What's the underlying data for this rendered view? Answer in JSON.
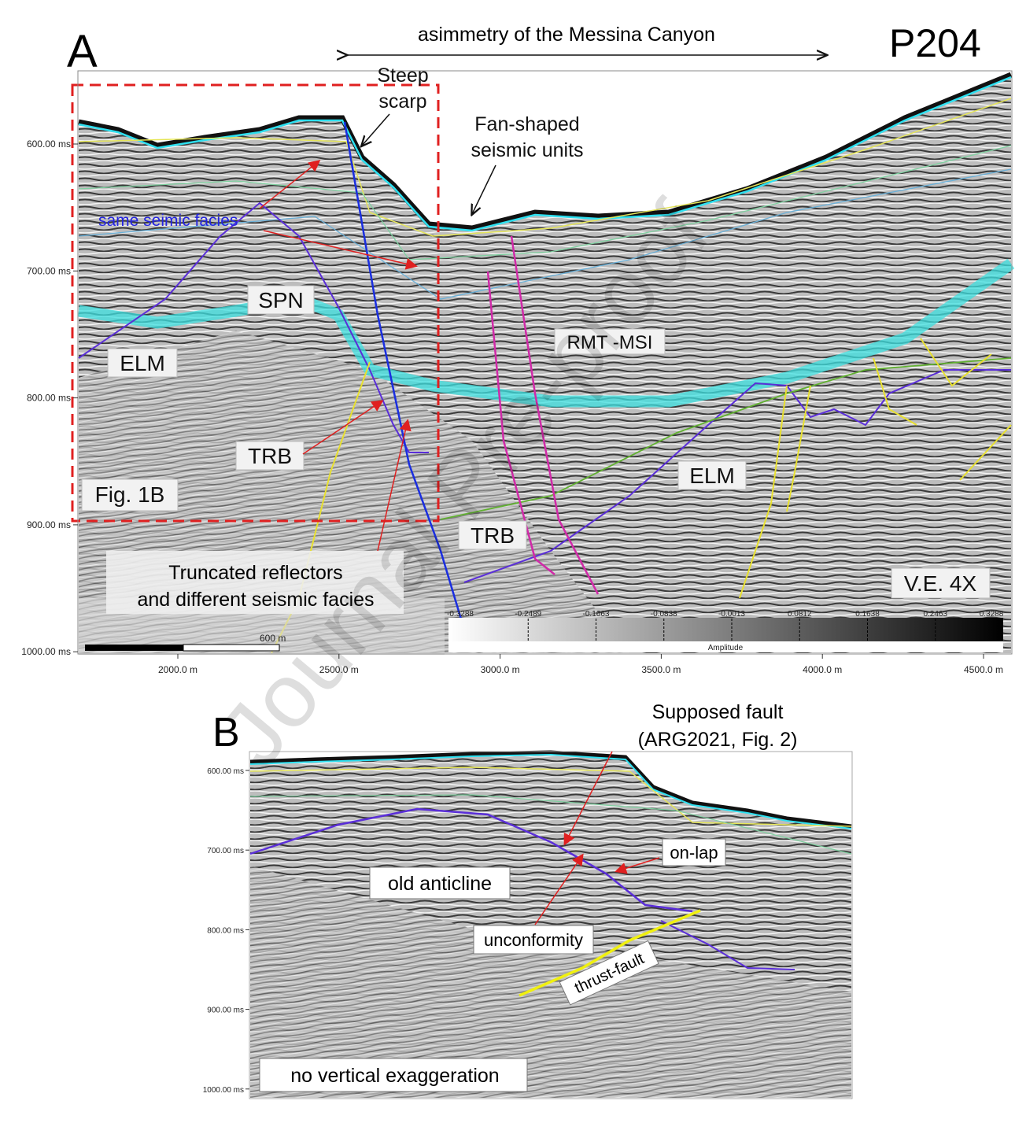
{
  "panel_a": {
    "label": "A",
    "profile": "P204",
    "arrow_caption": "asimmetry of the Messina Canyon",
    "annotations": {
      "steep": "Steep",
      "scarp": "scarp",
      "fan_1": "Fan-shaped",
      "fan_2": "seismic units",
      "same_facies": "same seimic facies",
      "spn": "SPN",
      "elm_left": "ELM",
      "trb_left": "TRB",
      "rmt": "RMT -MSI",
      "elm_right": "ELM",
      "trb_right": "TRB",
      "fig_ref": "Fig. 1B",
      "truncated_1": "Truncated reflectors",
      "truncated_2": "and different seismic facies",
      "ve": "V.E. 4X"
    },
    "y_ticks": [
      "600.00 ms",
      "700.00 ms",
      "800.00 ms",
      "900.00 ms",
      "1000.00 ms"
    ],
    "x_ticks": [
      "2000.0 m",
      "2500.0 m",
      "3000.0 m",
      "3500.0 m",
      "4000.0 m",
      "4500.0 m"
    ],
    "scale_bar": "600 m",
    "colorbar": {
      "ticks": [
        "-0.3288",
        "-0.2489",
        "-0.1663",
        "-0.0838",
        "-0.0013",
        "0.0812",
        "0.1638",
        "0.2463",
        "0.3288"
      ],
      "title": "Amplitude"
    }
  },
  "panel_b": {
    "label": "B",
    "annotations": {
      "fault_1": "Supposed fault",
      "fault_2": "(ARG2021, Fig. 2)",
      "onlap": "on-lap",
      "anticline": "old anticline",
      "unconformity": "unconformity",
      "thrust": "thrust-fault",
      "no_ve": "no vertical exaggeration"
    },
    "y_ticks": [
      "600.00 ms",
      "700.00 ms",
      "800.00 ms",
      "900.00 ms",
      "1000.00 ms"
    ]
  },
  "watermark": "Journal Pre-proof"
}
